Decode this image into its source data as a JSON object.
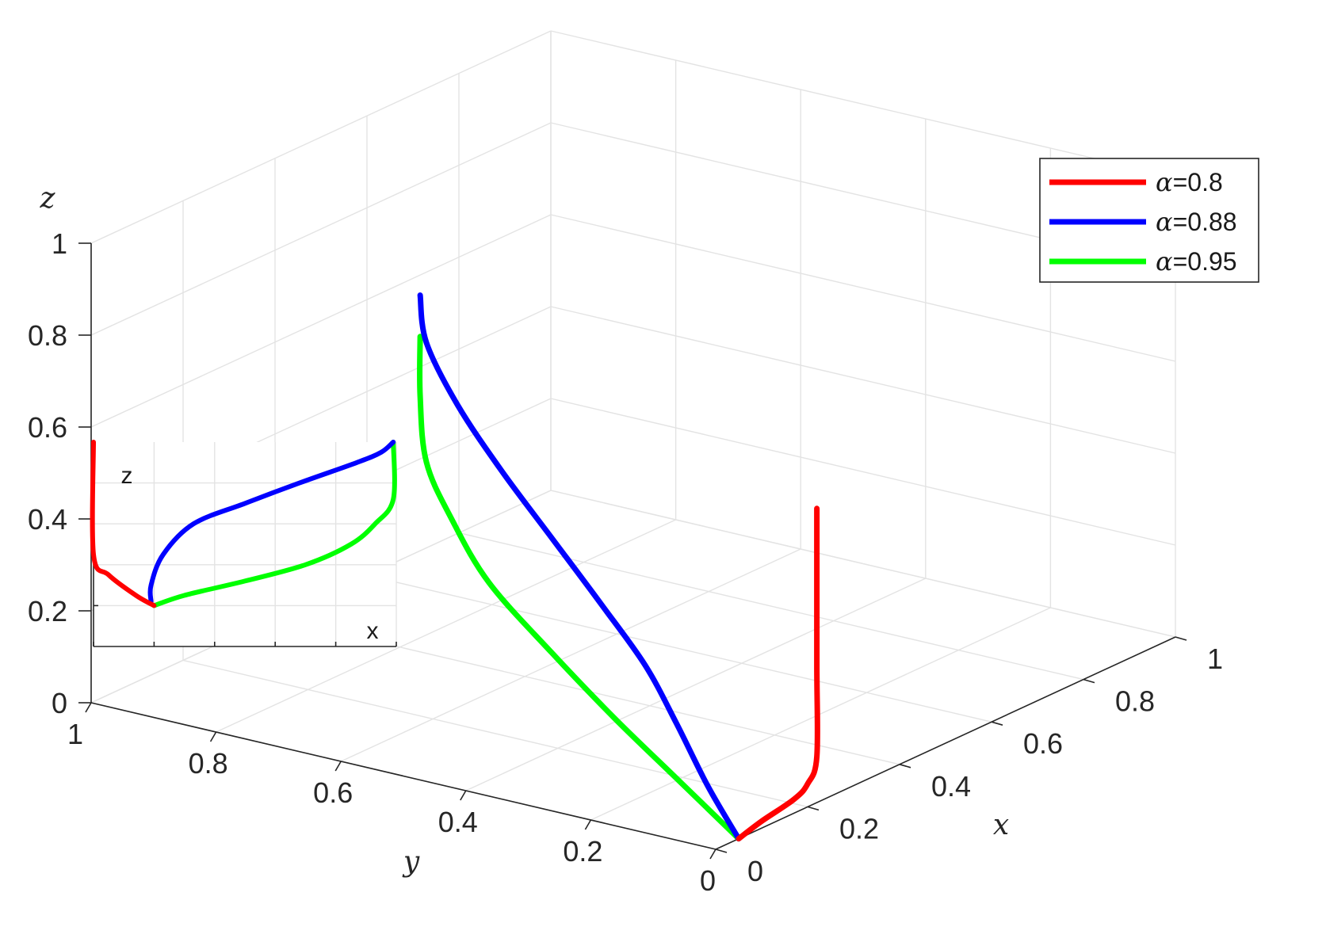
{
  "chart_data": [
    {
      "type": "line",
      "projection": "3d",
      "title": "",
      "xlabel": "x",
      "ylabel": "y",
      "zlabel": "z",
      "xlim": [
        0,
        1
      ],
      "ylim": [
        0,
        1
      ],
      "zlim": [
        0,
        1
      ],
      "x_ticks": [
        "0",
        "0.2",
        "0.4",
        "0.6",
        "0.8",
        "1"
      ],
      "y_ticks": [
        "0",
        "0.2",
        "0.4",
        "0.6",
        "0.8",
        "1"
      ],
      "z_ticks": [
        "0",
        "0.2",
        "0.4",
        "0.6",
        "0.8",
        "1"
      ],
      "grid": true,
      "legend_position": "top-right",
      "series": [
        {
          "name": "α=0.8",
          "color": "#ff0000",
          "points": [
            {
              "x": 0.05,
              "y": 0.0,
              "z": 0.0
            },
            {
              "x": 0.1,
              "y": 0.0,
              "z": 0.015
            },
            {
              "x": 0.17,
              "y": 0.0,
              "z": 0.03
            },
            {
              "x": 0.2,
              "y": 0.0,
              "z": 0.05
            },
            {
              "x": 0.22,
              "y": 0.0,
              "z": 0.1
            },
            {
              "x": 0.22,
              "y": 0.0,
              "z": 0.3
            },
            {
              "x": 0.22,
              "y": 0.0,
              "z": 0.6
            },
            {
              "x": 0.22,
              "y": 0.0,
              "z": 0.64
            }
          ]
        },
        {
          "name": "α=0.88",
          "color": "#0000ff",
          "points": [
            {
              "x": 0.05,
              "y": 0.0,
              "z": 0.0
            },
            {
              "x": 0.05,
              "y": 0.05,
              "z": 0.1
            },
            {
              "x": 0.05,
              "y": 0.1,
              "z": 0.22
            },
            {
              "x": 0.05,
              "y": 0.15,
              "z": 0.33
            },
            {
              "x": 0.05,
              "y": 0.22,
              "z": 0.44
            },
            {
              "x": 0.05,
              "y": 0.3,
              "z": 0.56
            },
            {
              "x": 0.05,
              "y": 0.38,
              "z": 0.68
            },
            {
              "x": 0.05,
              "y": 0.45,
              "z": 0.8
            },
            {
              "x": 0.05,
              "y": 0.5,
              "z": 0.92
            },
            {
              "x": 0.05,
              "y": 0.51,
              "z": 1.02
            }
          ]
        },
        {
          "name": "α=0.95",
          "color": "#00ff00",
          "points": [
            {
              "x": 0.05,
              "y": 0.0,
              "z": 0.0
            },
            {
              "x": 0.05,
              "y": 0.1,
              "z": 0.1
            },
            {
              "x": 0.05,
              "y": 0.2,
              "z": 0.2
            },
            {
              "x": 0.05,
              "y": 0.3,
              "z": 0.31
            },
            {
              "x": 0.05,
              "y": 0.4,
              "z": 0.43
            },
            {
              "x": 0.05,
              "y": 0.46,
              "z": 0.55
            },
            {
              "x": 0.05,
              "y": 0.5,
              "z": 0.66
            },
            {
              "x": 0.05,
              "y": 0.51,
              "z": 0.8
            },
            {
              "x": 0.05,
              "y": 0.51,
              "z": 0.93
            }
          ]
        }
      ]
    },
    {
      "type": "line",
      "role": "inset",
      "xlabel": "x",
      "ylabel": "z",
      "grid": true,
      "series": [
        {
          "color": "#ff0000",
          "points": [
            [
              0.0,
              1.0
            ],
            [
              0.0,
              0.45
            ],
            [
              0.05,
              0.35
            ],
            [
              0.14,
              0.25
            ],
            [
              0.2,
              0.2
            ]
          ]
        },
        {
          "color": "#0000ff",
          "points": [
            [
              0.19,
              0.22
            ],
            [
              0.19,
              0.3
            ],
            [
              0.23,
              0.45
            ],
            [
              0.33,
              0.6
            ],
            [
              0.5,
              0.7
            ],
            [
              0.68,
              0.8
            ],
            [
              0.87,
              0.9
            ],
            [
              0.95,
              0.95
            ],
            [
              0.99,
              1.0
            ]
          ]
        },
        {
          "color": "#00ff00",
          "points": [
            [
              0.2,
              0.2
            ],
            [
              0.3,
              0.25
            ],
            [
              0.5,
              0.32
            ],
            [
              0.7,
              0.4
            ],
            [
              0.85,
              0.5
            ],
            [
              0.93,
              0.6
            ],
            [
              0.99,
              0.72
            ],
            [
              0.99,
              1.0
            ]
          ]
        }
      ]
    }
  ]
}
